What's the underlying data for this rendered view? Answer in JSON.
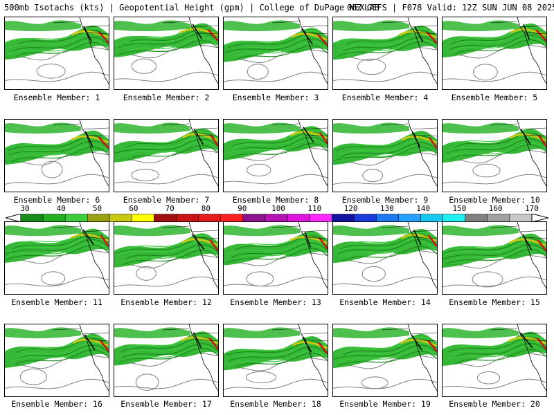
{
  "header": {
    "title": "500mb Isotachs (kts) | Geopotential Height (gpm) | College of DuPage NEXLAB",
    "run_info": "06Z GEFS | F078 Valid: 12Z SUN JUN 08 2025"
  },
  "panels": [
    {
      "label": "Ensemble Member: 1"
    },
    {
      "label": "Ensemble Member: 2"
    },
    {
      "label": "Ensemble Member: 3"
    },
    {
      "label": "Ensemble Member: 4"
    },
    {
      "label": "Ensemble Member: 5"
    },
    {
      "label": "Ensemble Member: 6"
    },
    {
      "label": "Ensemble Member: 7"
    },
    {
      "label": "Ensemble Member: 8"
    },
    {
      "label": "Ensemble Member: 9"
    },
    {
      "label": "Ensemble Member: 10"
    },
    {
      "label": "Ensemble Member: 11"
    },
    {
      "label": "Ensemble Member: 12"
    },
    {
      "label": "Ensemble Member: 13"
    },
    {
      "label": "Ensemble Member: 14"
    },
    {
      "label": "Ensemble Member: 15"
    },
    {
      "label": "Ensemble Member: 16"
    },
    {
      "label": "Ensemble Member: 17"
    },
    {
      "label": "Ensemble Member: 18"
    },
    {
      "label": "Ensemble Member: 19"
    },
    {
      "label": "Ensemble Member: 20"
    }
  ],
  "colorbar": {
    "labels": [
      "30",
      "40",
      "50",
      "60",
      "70",
      "80",
      "90",
      "100",
      "110",
      "120",
      "130",
      "140",
      "150",
      "160",
      "170"
    ],
    "colors": [
      "#1a8c1a",
      "#22b022",
      "#3ccc3c",
      "#9aa016",
      "#c8c814",
      "#ffff00",
      "#a01010",
      "#c81414",
      "#e61c1c",
      "#ff2020",
      "#8c148c",
      "#b414b4",
      "#dc14dc",
      "#ff28ff",
      "#1414a0",
      "#1e3cdc",
      "#1e78f0",
      "#28a0ff",
      "#14c8f0",
      "#1ef0f0",
      "#808080",
      "#a0a0a0",
      "#c8c8c8"
    ]
  },
  "colors": {
    "isotach_light": "#22b022",
    "isotach_mid": "#3ccc3c",
    "isotach_dark": "#1a8c1a",
    "jet_core_yellow": "#c8c814",
    "jet_core_red": "#c81414",
    "height_contour": "#7f7f7f",
    "map_lines": "#000000"
  }
}
